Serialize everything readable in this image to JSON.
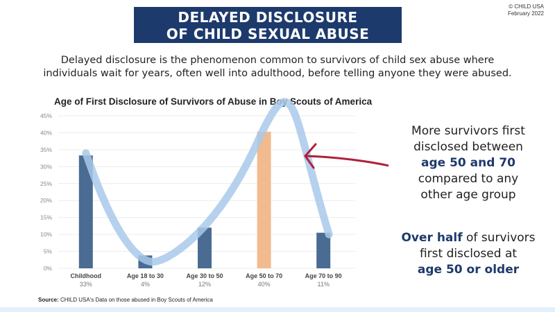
{
  "banner": {
    "line1": "DELAYED DISCLOSURE",
    "line2": "OF CHILD SEXUAL ABUSE"
  },
  "credit": {
    "line1": "© CHILD USA",
    "line2": "February 2022"
  },
  "intro": {
    "line1": "Delayed disclosure is the phenomenon common to survivors of child sex abuse where",
    "line2": "individuals wait for years, often well into adulthood, before telling anyone they were abused."
  },
  "callout1": {
    "l1": "More survivors first",
    "l2": "disclosed between",
    "l3": "age 50 and 70",
    "l4": "compared to any",
    "l5": "other age group"
  },
  "callout2": {
    "b1": "Over half",
    "l1": " of survivors",
    "l2": "first disclosed at",
    "l3": "age 50 or older"
  },
  "source": {
    "label": "Source:",
    "text": " CHILD USA's Data on those abused in Boy Scouts of America"
  },
  "colors": {
    "bar": "#4a6b92",
    "highlight": "#f2bb8f",
    "curve": "#a9c9ea",
    "arrow": "#b0213a",
    "banner": "#1d3a6c"
  },
  "chart_data": {
    "type": "bar",
    "title": "Age of First Disclosure of Survivors of Abuse in Boy Scouts of America",
    "categories": [
      "Childhood",
      "Age 18 to 30",
      "Age 30 to 50",
      "Age 50 to 70",
      "Age 70 to 90"
    ],
    "value_labels": [
      "33%",
      "4%",
      "12%",
      "40%",
      "11%"
    ],
    "values": [
      33.3,
      3.8,
      12,
      40.3,
      10.5
    ],
    "highlight_index": 3,
    "ylim": [
      0,
      45
    ],
    "yticks": [
      "0%",
      "5%",
      "10%",
      "15%",
      "20%",
      "25%",
      "30%",
      "35%",
      "40%",
      "45%"
    ],
    "grid": true,
    "xlabel": "",
    "ylabel": ""
  }
}
